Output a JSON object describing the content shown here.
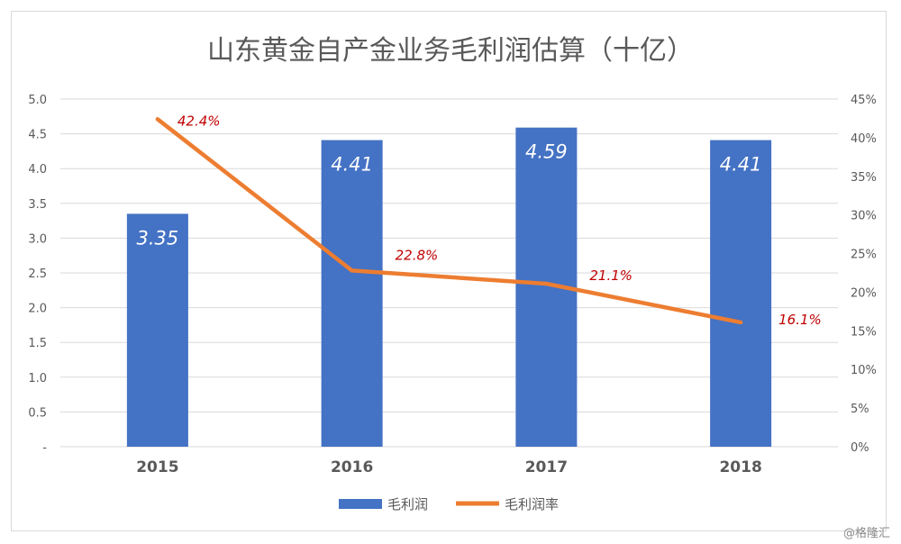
{
  "chart_data": {
    "type": "bar",
    "title": "山东黄金自产金业务毛利润估算（十亿）",
    "categories": [
      "2015",
      "2016",
      "2017",
      "2018"
    ],
    "series": [
      {
        "name": "毛利润",
        "kind": "bar",
        "axis": "left",
        "values": [
          3.35,
          4.41,
          4.59,
          4.41
        ],
        "labels": [
          "3.35",
          "4.41",
          "4.59",
          "4.41"
        ],
        "color": "#4472C4"
      },
      {
        "name": "毛利润率",
        "kind": "line",
        "axis": "right",
        "values": [
          42.4,
          22.8,
          21.1,
          16.1
        ],
        "labels": [
          "42.4%",
          "22.8%",
          "21.1%",
          "16.1%"
        ],
        "color": "#ED7D31"
      }
    ],
    "y_left": {
      "range": [
        0,
        5.0
      ],
      "ticks": [
        "-",
        "0.5",
        "1.0",
        "1.5",
        "2.0",
        "2.5",
        "3.0",
        "3.5",
        "4.0",
        "4.5",
        "5.0"
      ]
    },
    "y_right": {
      "range": [
        0,
        45
      ],
      "ticks": [
        "0%",
        "5%",
        "10%",
        "15%",
        "20%",
        "25%",
        "30%",
        "35%",
        "40%",
        "45%"
      ]
    },
    "grid": true,
    "legend_position": "bottom",
    "colors": {
      "bar": "#4472C4",
      "line": "#ED7D31",
      "line_label": "#C00000",
      "grid": "#d9d9d9",
      "axis_text": "#595959"
    }
  },
  "watermark": "@格隆汇"
}
